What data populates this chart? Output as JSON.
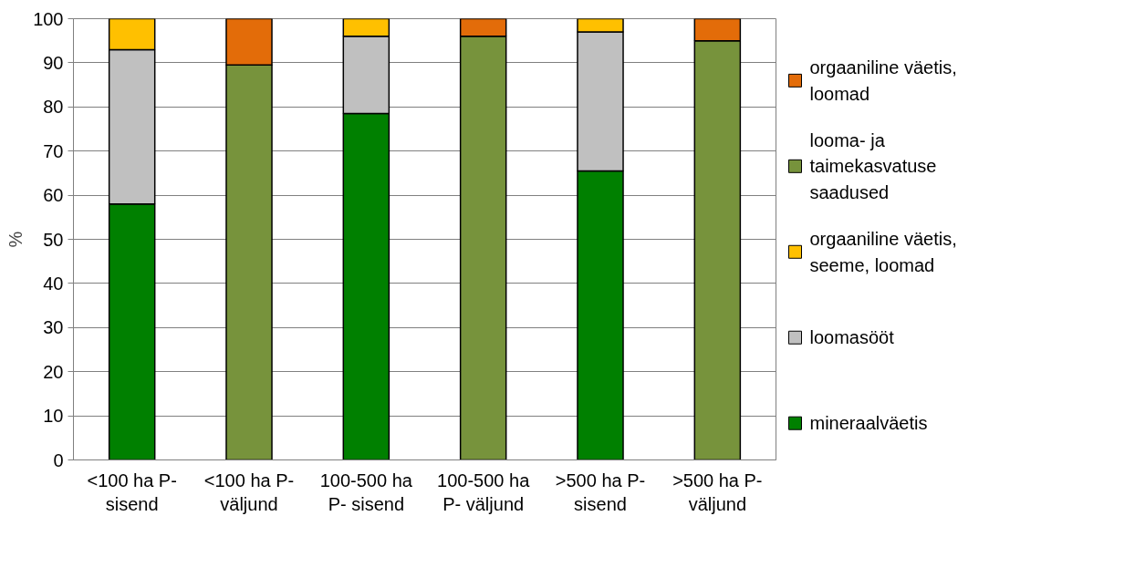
{
  "chart_data": {
    "type": "bar",
    "stacked": true,
    "ylabel": "%",
    "categories": [
      "<100 ha P- sisend",
      "<100 ha P- väljund",
      "100-500 ha P- sisend",
      "100-500 ha P- väljund",
      ">500 ha P- sisend",
      ">500 ha P- väljund"
    ],
    "series": [
      {
        "name": "mineraalväetis",
        "color": "#008000",
        "values": [
          58,
          0,
          78.5,
          0,
          65.5,
          0
        ]
      },
      {
        "name": "loomasööt",
        "color": "#c0c0c0",
        "values": [
          35,
          0,
          17.5,
          0,
          31.5,
          0
        ]
      },
      {
        "name": "orgaaniline väetis, seeme, loomad",
        "color": "#ffc000",
        "values": [
          7,
          0,
          4,
          0,
          3,
          0
        ]
      },
      {
        "name": "looma- ja taimekasvatuse saadused",
        "color": "#77933c",
        "values": [
          0,
          89.5,
          0,
          96,
          0,
          95
        ]
      },
      {
        "name": "orgaaniline väetis, loomad",
        "color": "#e36c09",
        "values": [
          0,
          10.5,
          0,
          4,
          0,
          5
        ]
      }
    ],
    "ylim": [
      0,
      100
    ],
    "yticks": [
      0,
      10,
      20,
      30,
      40,
      50,
      60,
      70,
      80,
      90,
      100
    ],
    "grid": "y",
    "legend": "right"
  }
}
